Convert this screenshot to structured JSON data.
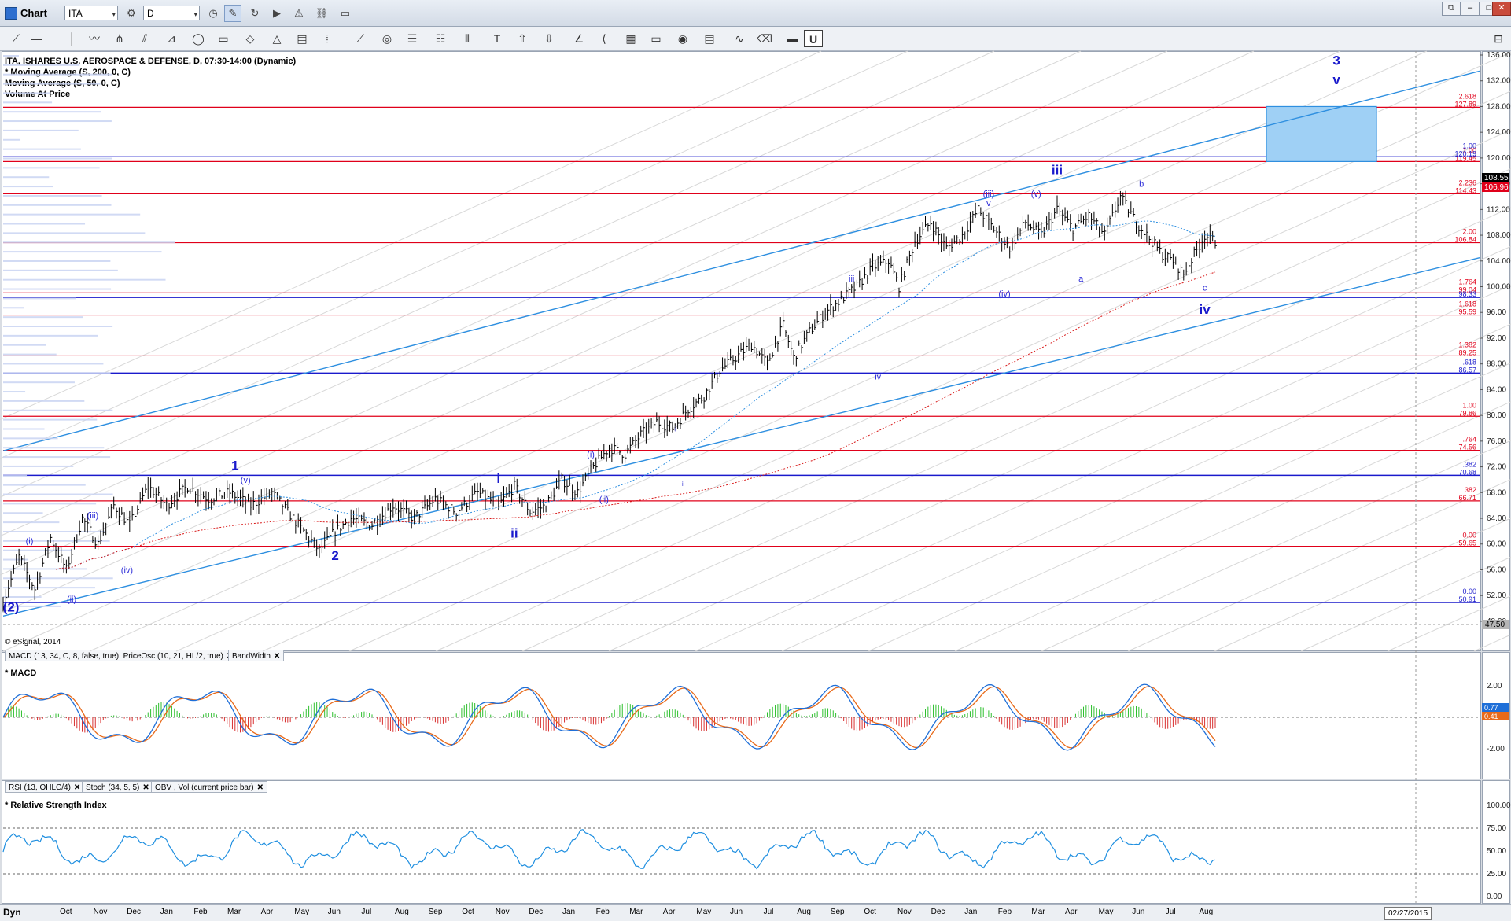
{
  "window": {
    "title": "Chart",
    "symbol": "ITA",
    "interval": "D",
    "win_controls": [
      "⧉",
      "–",
      "□",
      "✕"
    ]
  },
  "chart_header": {
    "line1": "ITA, ISHARES U.S. AEROSPACE & DEFENSE, D, 07:30-14:00 (Dynamic)",
    "line2": "* Moving Average (S, 200, 0, C)",
    "line3": "Moving Average (S, 50, 0, C)",
    "line4": "Volume At Price",
    "copyright": "© eSignal, 2014"
  },
  "macd_pane": {
    "tab1": "MACD (13, 34, C, 8, false, true), PriceOsc (10, 21, HL/2, true)",
    "tab2": "BandWidth",
    "title": "* MACD",
    "ticks": [
      "2.00",
      "0.00",
      "-2.00"
    ],
    "last_labels": [
      "0.77",
      "0.41"
    ]
  },
  "rsi_pane": {
    "tab1": "RSI (13, OHLC/4)",
    "tab2": "Stoch (34, 5, 5)",
    "tab3": "OBV , Vol (current price bar)",
    "title": "* Relative Strength Index",
    "ticks": [
      "100.00",
      "75.00",
      "50.00",
      "25.00",
      "0.00"
    ]
  },
  "time_axis": {
    "dyn_label": "Dyn",
    "months": [
      "Oct",
      "Nov",
      "Dec",
      "Jan",
      "Feb",
      "Mar",
      "Apr",
      "May",
      "Jun",
      "Jul",
      "Aug",
      "Sep",
      "Oct",
      "Nov",
      "Dec",
      "Jan",
      "Feb",
      "Mar",
      "Apr",
      "May",
      "Jun",
      "Jul",
      "Aug",
      "Sep",
      "Oct",
      "Nov",
      "Dec",
      "Jan",
      "Feb",
      "Mar",
      "Apr",
      "May",
      "Jun",
      "Jul",
      "Aug"
    ],
    "future_date": "02/27/2015"
  },
  "colors": {
    "price_bar": "#000000",
    "fib_line": "#e0001a",
    "support_line": "#1a1acc",
    "channel": "#2e8fe0",
    "ma200": "#d81b1b",
    "ma50": "#2e8fe0",
    "target_box": "#9fd0f5",
    "macd_line": "#1f6fd8",
    "signal_line": "#e86a1a",
    "hist_pos": "#2dbf2d",
    "hist_neg": "#d83030",
    "rsi_line": "#1f8fe0",
    "price_label_bg": "#000000"
  },
  "chart_data": {
    "type": "ohlc",
    "y_axis_ticks": [
      "136.00",
      "132.00",
      "128.00",
      "124.00",
      "120.00",
      "116.00",
      "112.00",
      "108.00",
      "104.00",
      "100.00",
      "96.00",
      "92.00",
      "88.00",
      "84.00",
      "80.00",
      "76.00",
      "72.00",
      "68.00",
      "64.00",
      "60.00",
      "56.00",
      "52.00",
      "48.00"
    ],
    "ylim": [
      47.5,
      136
    ],
    "bottom_label": "47.50",
    "last_price_labels": [
      "108.55",
      "106.96"
    ],
    "close_path": [
      [
        0,
        51
      ],
      [
        6,
        58
      ],
      [
        12,
        53
      ],
      [
        18,
        61
      ],
      [
        24,
        56
      ],
      [
        30,
        64
      ],
      [
        36,
        60
      ],
      [
        42,
        66
      ],
      [
        48,
        63
      ],
      [
        55,
        69
      ],
      [
        62,
        66
      ],
      [
        70,
        69
      ],
      [
        78,
        67
      ],
      [
        86,
        68
      ],
      [
        94,
        66
      ],
      [
        102,
        68
      ],
      [
        108,
        65
      ],
      [
        114,
        62
      ],
      [
        120,
        59
      ],
      [
        126,
        62
      ],
      [
        132,
        64
      ],
      [
        140,
        63
      ],
      [
        148,
        66
      ],
      [
        156,
        64
      ],
      [
        164,
        67
      ],
      [
        172,
        65
      ],
      [
        180,
        68
      ],
      [
        188,
        66
      ],
      [
        194,
        69
      ],
      [
        200,
        65
      ],
      [
        206,
        66
      ],
      [
        212,
        70
      ],
      [
        218,
        68
      ],
      [
        224,
        72
      ],
      [
        230,
        75
      ],
      [
        236,
        74
      ],
      [
        242,
        77
      ],
      [
        248,
        79
      ],
      [
        254,
        78
      ],
      [
        260,
        81
      ],
      [
        266,
        83
      ],
      [
        272,
        87
      ],
      [
        278,
        89
      ],
      [
        284,
        91
      ],
      [
        290,
        88
      ],
      [
        296,
        94
      ],
      [
        300,
        89
      ],
      [
        306,
        93
      ],
      [
        312,
        96
      ],
      [
        318,
        98
      ],
      [
        324,
        100
      ],
      [
        330,
        103
      ],
      [
        336,
        104
      ],
      [
        340,
        100
      ],
      [
        346,
        107
      ],
      [
        352,
        110
      ],
      [
        358,
        106
      ],
      [
        364,
        108
      ],
      [
        370,
        112
      ],
      [
        376,
        109
      ],
      [
        382,
        106
      ],
      [
        388,
        110
      ],
      [
        394,
        108
      ],
      [
        400,
        112
      ],
      [
        406,
        109
      ],
      [
        412,
        111
      ],
      [
        418,
        108
      ],
      [
        424,
        114
      ],
      [
        430,
        110
      ],
      [
        436,
        107
      ],
      [
        440,
        105
      ],
      [
        444,
        104
      ],
      [
        448,
        102
      ],
      [
        452,
        105
      ],
      [
        456,
        108
      ],
      [
        460,
        107
      ]
    ],
    "fib_levels": [
      {
        "ratio": "2.618",
        "value": "127.89",
        "y": 127.89
      },
      {
        "ratio": "1.00",
        "value": "119.45",
        "y": 119.45
      },
      {
        "ratio": "2.236",
        "value": "114.43",
        "y": 114.43
      },
      {
        "ratio": "2.00",
        "value": "106.84",
        "y": 106.84
      },
      {
        "ratio": "1.764",
        "value": "99.04",
        "y": 99.04
      },
      {
        "ratio": "1.618",
        "value": "95.59",
        "y": 95.59
      },
      {
        "ratio": "1.382",
        "value": "89.25",
        "y": 89.25
      },
      {
        "ratio": "1.00",
        "value": "79.86",
        "y": 79.86
      },
      {
        "ratio": ".764",
        "value": "74.56",
        "y": 74.56
      },
      {
        "ratio": ".382",
        "value": "66.71",
        "y": 66.71
      },
      {
        "ratio": "0.00",
        "value": "59.65",
        "y": 59.65
      }
    ],
    "support_levels": [
      {
        "ratio": "1.00",
        "value": "120.19",
        "y": 120.19
      },
      {
        "ratio": "",
        "value": "98.33",
        "y": 98.33
      },
      {
        "ratio": ".618",
        "value": "86.57",
        "y": 86.57
      },
      {
        "ratio": ".382",
        "value": "70.68",
        "y": 70.68
      },
      {
        "ratio": "0.00",
        "value": "50.91",
        "y": 50.91
      }
    ],
    "wave_labels_major": [
      {
        "text": "(2)",
        "t": 3,
        "y": 49.5
      },
      {
        "text": "1",
        "t": 88,
        "y": 71.5
      },
      {
        "text": "2",
        "t": 126,
        "y": 57.5
      },
      {
        "text": "i",
        "t": 188,
        "y": 69.5
      },
      {
        "text": "ii",
        "t": 194,
        "y": 61
      },
      {
        "text": "iii",
        "t": 400,
        "y": 117.5
      },
      {
        "text": "iv",
        "t": 456,
        "y": 95.8
      },
      {
        "text": "3",
        "t": 506,
        "y": 134.5
      },
      {
        "text": "v",
        "t": 506,
        "y": 131.5
      }
    ],
    "wave_labels_minor": [
      {
        "text": "(i)",
        "t": 10,
        "y": 60
      },
      {
        "text": "(ii)",
        "t": 26,
        "y": 51
      },
      {
        "text": "(iii)",
        "t": 34,
        "y": 64
      },
      {
        "text": "(iv)",
        "t": 47,
        "y": 55.5
      },
      {
        "text": "(v)",
        "t": 92,
        "y": 69.5
      },
      {
        "text": "(i)",
        "t": 223,
        "y": 73.5
      },
      {
        "text": "(ii)",
        "t": 228,
        "y": 66.5
      },
      {
        "text": "(iii)",
        "t": 374,
        "y": 114
      },
      {
        "text": "v",
        "t": 374,
        "y": 112.5
      },
      {
        "text": "(iv)",
        "t": 380,
        "y": 98.5
      },
      {
        "text": "(v)",
        "t": 392,
        "y": 114
      },
      {
        "text": "a",
        "t": 409,
        "y": 100.8
      },
      {
        "text": "b",
        "t": 432,
        "y": 115.5
      },
      {
        "text": "c",
        "t": 456,
        "y": 99.4
      },
      {
        "text": "iii",
        "t": 322,
        "y": 100.8
      },
      {
        "text": "iv",
        "t": 332,
        "y": 85.6
      }
    ],
    "wave_labels_tiny": [
      {
        "text": "i",
        "t": 255,
        "y": 77.5
      },
      {
        "text": "ii",
        "t": 258,
        "y": 69
      }
    ]
  }
}
